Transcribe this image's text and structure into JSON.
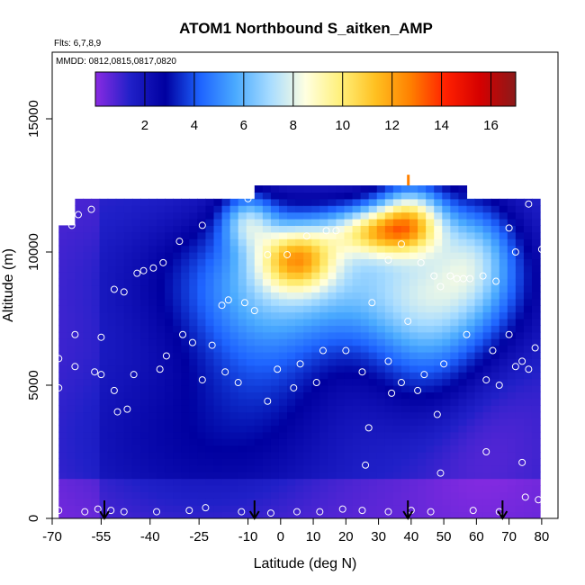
{
  "chart_data": {
    "type": "heatmap",
    "title": "ATOM1 Northbound S_aitken_AMP",
    "note_flights": "Flts: 6,7,8,9",
    "note_dates": "MMDD: 0812,0815,0817,0820",
    "xlabel": "Latitude (deg N)",
    "ylabel": "Altitude (m)",
    "xlim": [
      -70,
      85
    ],
    "ylim": [
      0,
      17500
    ],
    "x_ticks": [
      -70,
      -55,
      -40,
      -25,
      -10,
      0,
      10,
      20,
      30,
      40,
      50,
      60,
      70,
      80
    ],
    "x_tick_labels": [
      "-70",
      "-55",
      "-40",
      "-25",
      "-10",
      "0",
      "10",
      "20",
      "30",
      "40",
      "50",
      "60",
      "70",
      "80"
    ],
    "y_ticks": [
      0,
      5000,
      10000,
      15000
    ],
    "y_tick_labels": [
      "0",
      "5000",
      "10000",
      "15000"
    ],
    "colorbar": {
      "range": [
        0,
        17
      ],
      "ticks": [
        2,
        4,
        6,
        8,
        10,
        12,
        14,
        16
      ],
      "tick_labels": [
        "2",
        "4",
        "6",
        "8",
        "10",
        "12",
        "14",
        "16"
      ],
      "colors": [
        "#8a2be2",
        "#2020c8",
        "#0000a0",
        "#1e64ff",
        "#4aaaff",
        "#a8dcff",
        "#ffffe0",
        "#fff07a",
        "#ffc020",
        "#ff8000",
        "#ff2000",
        "#d40000",
        "#8b1a1a"
      ]
    },
    "arrow_latitudes": [
      -54,
      -8,
      39,
      68
    ],
    "sample_points": [
      {
        "x": -68,
        "y": 300
      },
      {
        "x": -60,
        "y": 250
      },
      {
        "x": -56,
        "y": 350
      },
      {
        "x": -52,
        "y": 300
      },
      {
        "x": -48,
        "y": 250
      },
      {
        "x": -38,
        "y": 250
      },
      {
        "x": -28,
        "y": 300
      },
      {
        "x": -23,
        "y": 400
      },
      {
        "x": -12,
        "y": 250
      },
      {
        "x": -3,
        "y": 200
      },
      {
        "x": 5,
        "y": 250
      },
      {
        "x": 12,
        "y": 250
      },
      {
        "x": 19,
        "y": 350
      },
      {
        "x": 25,
        "y": 300
      },
      {
        "x": 33,
        "y": 250
      },
      {
        "x": 40,
        "y": 300
      },
      {
        "x": 46,
        "y": 250
      },
      {
        "x": 59,
        "y": 300
      },
      {
        "x": 67,
        "y": 250
      },
      {
        "x": 75,
        "y": 800
      },
      {
        "x": 79,
        "y": 700
      },
      {
        "x": -68,
        "y": 4900
      },
      {
        "x": -63,
        "y": 5700
      },
      {
        "x": -57,
        "y": 5500
      },
      {
        "x": -55,
        "y": 5400
      },
      {
        "x": -51,
        "y": 4800
      },
      {
        "x": -50,
        "y": 4000
      },
      {
        "x": -47,
        "y": 4100
      },
      {
        "x": -45,
        "y": 5400
      },
      {
        "x": -37,
        "y": 5600
      },
      {
        "x": -35,
        "y": 6100
      },
      {
        "x": -30,
        "y": 6900
      },
      {
        "x": -27,
        "y": 6600
      },
      {
        "x": -24,
        "y": 5200
      },
      {
        "x": -21,
        "y": 6500
      },
      {
        "x": -17,
        "y": 5500
      },
      {
        "x": -13,
        "y": 5100
      },
      {
        "x": -4,
        "y": 4400
      },
      {
        "x": -1,
        "y": 5600
      },
      {
        "x": 4,
        "y": 4900
      },
      {
        "x": 6,
        "y": 5800
      },
      {
        "x": 11,
        "y": 5100
      },
      {
        "x": 13,
        "y": 6300
      },
      {
        "x": 20,
        "y": 6300
      },
      {
        "x": 25,
        "y": 5500
      },
      {
        "x": 27,
        "y": 3400
      },
      {
        "x": 26,
        "y": 2000
      },
      {
        "x": 33,
        "y": 5900
      },
      {
        "x": 34,
        "y": 4700
      },
      {
        "x": 37,
        "y": 5100
      },
      {
        "x": 42,
        "y": 4800
      },
      {
        "x": 44,
        "y": 5400
      },
      {
        "x": 48,
        "y": 3900
      },
      {
        "x": 49,
        "y": 1700
      },
      {
        "x": 50,
        "y": 5800
      },
      {
        "x": 57,
        "y": 6900
      },
      {
        "x": 63,
        "y": 5200
      },
      {
        "x": 63,
        "y": 2500
      },
      {
        "x": 65,
        "y": 6300
      },
      {
        "x": 67,
        "y": 5000
      },
      {
        "x": 70,
        "y": 6900
      },
      {
        "x": 72,
        "y": 5700
      },
      {
        "x": 74,
        "y": 5900
      },
      {
        "x": 74,
        "y": 2100
      },
      {
        "x": 76,
        "y": 5600
      },
      {
        "x": 78,
        "y": 6400
      },
      {
        "x": -63,
        "y": 6900
      },
      {
        "x": -55,
        "y": 6800
      },
      {
        "x": -68,
        "y": 6000
      },
      {
        "x": -64,
        "y": 11000
      },
      {
        "x": -62,
        "y": 11400
      },
      {
        "x": -58,
        "y": 11600
      },
      {
        "x": -51,
        "y": 8600
      },
      {
        "x": -48,
        "y": 8500
      },
      {
        "x": -44,
        "y": 9200
      },
      {
        "x": -42,
        "y": 9300
      },
      {
        "x": -39,
        "y": 9400
      },
      {
        "x": -36,
        "y": 9600
      },
      {
        "x": -31,
        "y": 10400
      },
      {
        "x": -24,
        "y": 11000
      },
      {
        "x": -18,
        "y": 8000
      },
      {
        "x": -16,
        "y": 8200
      },
      {
        "x": -11,
        "y": 8100
      },
      {
        "x": -8,
        "y": 7800
      },
      {
        "x": -10,
        "y": 12000
      },
      {
        "x": -4,
        "y": 9900
      },
      {
        "x": 2,
        "y": 9900
      },
      {
        "x": 8,
        "y": 10600
      },
      {
        "x": 14,
        "y": 10800
      },
      {
        "x": 17,
        "y": 10800
      },
      {
        "x": 28,
        "y": 8100
      },
      {
        "x": 33,
        "y": 9700
      },
      {
        "x": 37,
        "y": 10300
      },
      {
        "x": 39,
        "y": 7400
      },
      {
        "x": 43,
        "y": 9600
      },
      {
        "x": 47,
        "y": 9100
      },
      {
        "x": 49,
        "y": 8700
      },
      {
        "x": 52,
        "y": 9100
      },
      {
        "x": 54,
        "y": 9000
      },
      {
        "x": 56,
        "y": 9000
      },
      {
        "x": 58,
        "y": 9000
      },
      {
        "x": 62,
        "y": 9100
      },
      {
        "x": 66,
        "y": 8900
      },
      {
        "x": 70,
        "y": 10900
      },
      {
        "x": 72,
        "y": 10000
      },
      {
        "x": 76,
        "y": 11800
      },
      {
        "x": 80,
        "y": 10100
      }
    ]
  }
}
